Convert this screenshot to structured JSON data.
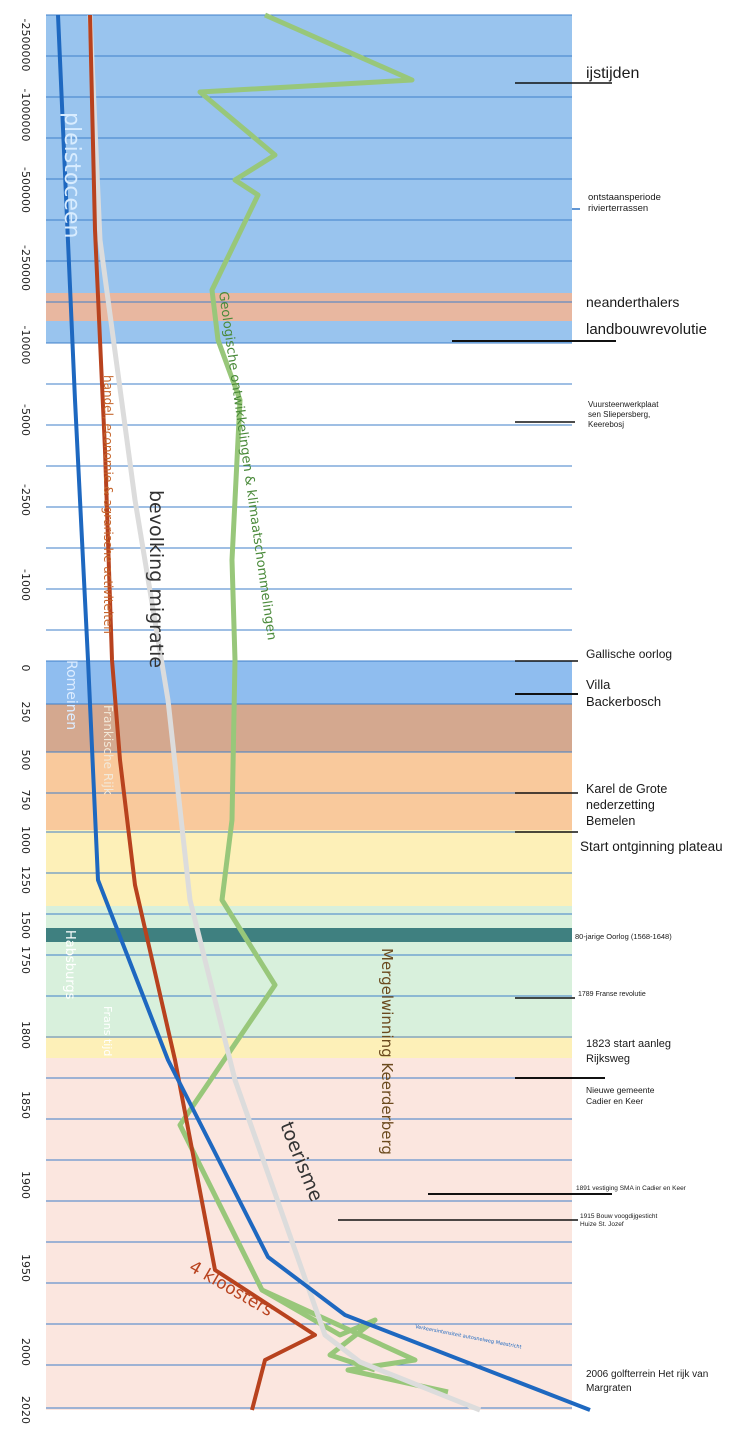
{
  "timeline": {
    "axis_ticks": [
      "-2500000",
      "-1000000",
      "-500000",
      "-250000",
      "-10000",
      "-5000",
      "-2500",
      "-1000",
      "0",
      "250",
      "500",
      "750",
      "1000",
      "1250",
      "1500",
      "1750",
      "1800",
      "1850",
      "1900",
      "1950",
      "2000",
      "2020"
    ],
    "events": [
      {
        "id": "ijstijden",
        "lines": [
          "ijstijden"
        ]
      },
      {
        "id": "rivierterrassen",
        "lines": [
          "ontstaansperiode",
          "rivierterrassen"
        ]
      },
      {
        "id": "neanderthalers",
        "lines": [
          "neanderthalers"
        ]
      },
      {
        "id": "landbouwrevolutie",
        "lines": [
          "landbouwrevolutie"
        ]
      },
      {
        "id": "vuursteen",
        "lines": [
          "Vuursteenwerkplaat",
          "sen Sliepersberg,",
          "Keerebosj"
        ]
      },
      {
        "id": "gallische",
        "lines": [
          "Gallische oorlog"
        ]
      },
      {
        "id": "villa",
        "lines": [
          "Villa",
          "Backerbosch"
        ]
      },
      {
        "id": "karel",
        "lines": [
          "Karel de Grote",
          "nederzetting",
          "Bemelen"
        ]
      },
      {
        "id": "ontginning",
        "lines": [
          "Start ontginning plateau"
        ]
      },
      {
        "id": "tachtigjarige",
        "lines": [
          "80-jarige Oorlog (1568-1648)"
        ]
      },
      {
        "id": "franse",
        "lines": [
          "1789 Franse revolutie"
        ]
      },
      {
        "id": "rijksweg",
        "lines": [
          "1823 start aanleg",
          "Rijksweg"
        ]
      },
      {
        "id": "gemeente",
        "lines": [
          "Nieuwe gemeente",
          "Cadier en Keer"
        ]
      },
      {
        "id": "sma",
        "lines": [
          "1891 vestiging SMA in Cadier en Keer"
        ]
      },
      {
        "id": "voogdij",
        "lines": [
          "1915 Bouw voogdijgesticht",
          "Huize St. Jozef"
        ]
      },
      {
        "id": "golf",
        "lines": [
          "2006 golfterrein Het rijk van",
          "Margraten"
        ]
      }
    ],
    "period_labels": {
      "pleistoceen": "pleistoceen",
      "romeinen": "Romeinen",
      "frankische": "Frankische Rijk",
      "habsburgs": "Habsburgs",
      "frans": "Frans tijd"
    },
    "theme_labels": {
      "handel": "handel, economie & agrarische activiteiten",
      "bevolking": "bevolking migratie",
      "geologie": "Geologische ontwikkelingen & klimaatschommelingen",
      "mergel": "Mergelwinning Keerderberg",
      "toerisme": "toerisme",
      "kloosters": "4 kloosters",
      "verkeer": "Verkeersintensiteit autosnelweg Maastricht"
    },
    "colors": {
      "ice_age": "#99c4ee",
      "stone_age": "#e8b7a0",
      "roman": "#8fbdef",
      "frankish": "#d4a88f",
      "medieval": "#f9c99c",
      "late_medieval": "#fdf0b8",
      "habsburg": "#d8f0dc",
      "habsburg_dark": "#3f8080",
      "french": "#fdf0b8",
      "modern": "#fbe6df",
      "gridline": "#3f7fca",
      "blue_line": "#1e68c0",
      "red_line": "#b8421e",
      "white_line": "#dcdcdc",
      "green_line": "#98c77a"
    }
  }
}
